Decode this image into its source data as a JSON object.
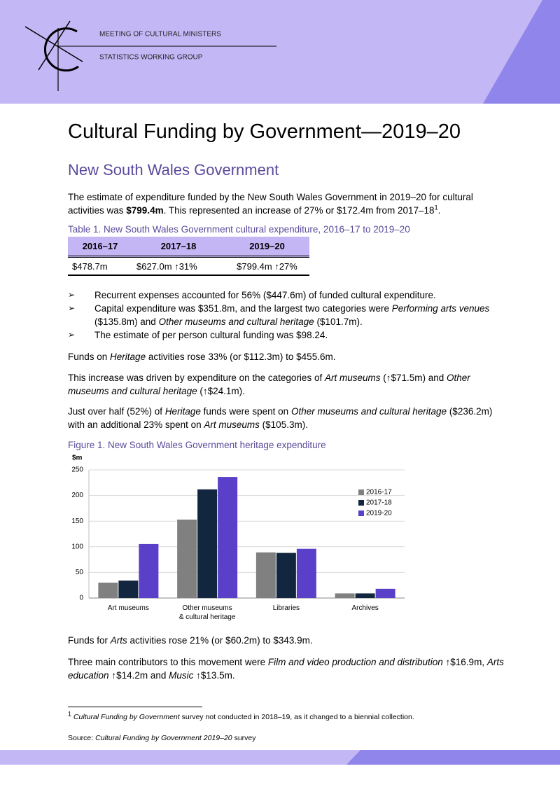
{
  "header": {
    "org": "MEETING OF CULTURAL MINISTERS",
    "group": "STATISTICS WORKING GROUP"
  },
  "title": "Cultural Funding by Government—2019–20",
  "subtitle": "New South Wales Government",
  "intro": [
    "The estimate of expenditure funded by the New South Wales Government in 2019–20 for cultural activities was ",
    "$799.4m",
    ". This represented an increase of 27% or $172.4m from 2017–18",
    "1",
    "."
  ],
  "table": {
    "caption": "Table 1. New South Wales Government cultural expenditure, 2016–17 to 2019–20",
    "headers": [
      "2016–17",
      "2017–18",
      "2019–20"
    ],
    "rows": [
      [
        "$478.7m",
        "$627.0m ↑31%",
        "$799.4m ↑27%"
      ]
    ]
  },
  "bullets": [
    [
      "Recurrent expenses accounted for 56% ($447.6m) of funded cultural expenditure."
    ],
    [
      "Capital expenditure was $351.8m, and the largest two categories were ",
      "Performing arts venues",
      " ($135.8m) and ",
      "Other museums and cultural heritage",
      " ($101.7m)."
    ],
    [
      "The estimate of per person cultural funding was $98.24."
    ]
  ],
  "paragraphs": [
    [
      "Funds on ",
      "Heritage",
      " activities rose 33% (or $112.3m) to $455.6m."
    ],
    [
      "This increase was driven by expenditure on the categories of ",
      "Art museums",
      " (↑$71.5m) and ",
      "Other museums and cultural heritage",
      " (↑$24.1m)."
    ],
    [
      "Just over half (52%) of ",
      "Heritage",
      " funds were spent on ",
      "Other museums and cultural heritage",
      " ($236.2m) with an additional 23% spent on ",
      "Art museums",
      " ($105.3m)."
    ]
  ],
  "figure_caption": "Figure 1. New South Wales Government heritage expenditure",
  "chart_data": {
    "type": "bar",
    "y_label": "$m",
    "categories": [
      "Art museums",
      "Other museums\n& cultural heritage",
      "Libraries",
      "Archives"
    ],
    "series": [
      {
        "name": "2016-17",
        "color": "#808080",
        "values": [
          30,
          153,
          89,
          9
        ]
      },
      {
        "name": "2017-18",
        "color": "#12263f",
        "values": [
          34,
          212,
          88,
          9
        ]
      },
      {
        "name": "2019-20",
        "color": "#5a3fc8",
        "values": [
          105.3,
          236.2,
          96,
          18
        ]
      }
    ],
    "ylim": [
      0,
      250
    ],
    "yticks": [
      0,
      50,
      100,
      150,
      200,
      250
    ],
    "grid": true,
    "legend": "right"
  },
  "closing": [
    [
      "Funds for ",
      "Arts",
      " activities rose 21% (or $60.2m) to $343.9m."
    ],
    [
      "Three main contributors to this movement were ",
      "Film and video production and distribution",
      " ↑$16.9m, ",
      "Arts education",
      " ↑$14.2m and ",
      "Music",
      " ↑$13.5m."
    ]
  ],
  "footnote": [
    "1",
    "Cultural Funding by Government",
    " survey not conducted in 2018–19, as it changed to a biennial collection."
  ],
  "source": [
    "Source: ",
    "Cultural Funding by Government 2019–20",
    " survey"
  ]
}
